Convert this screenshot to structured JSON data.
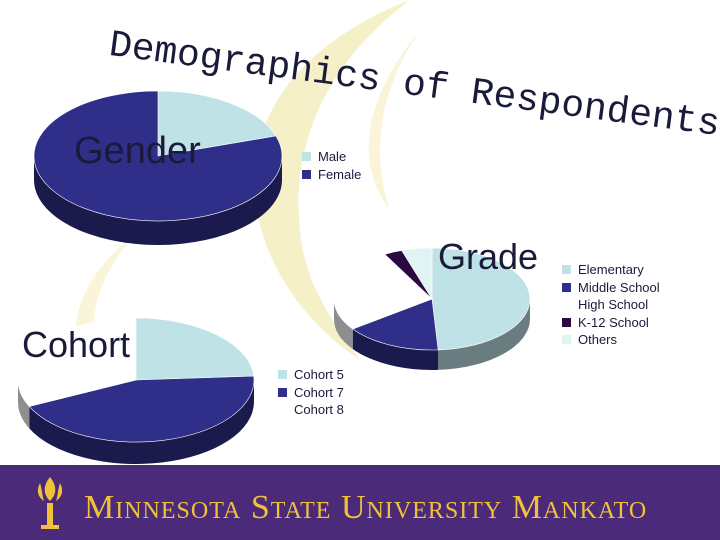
{
  "slide": {
    "title": "Demographics of Respondents",
    "footer": {
      "institution": "Minnesota State University Mankato",
      "words": [
        "Minnesota",
        "State",
        "University",
        "Mankato"
      ]
    }
  },
  "colors": {
    "light_blue": "#bfe2e6",
    "navy": "#2f2f8a",
    "white": "#ffffff",
    "dark_purple": "#2a0a40",
    "pale_cyan": "#e0f4f4",
    "footer_bg": "#4b2a7a",
    "footer_text": "#f0c23a",
    "watermark": "#f6f0c8"
  },
  "chart_data": [
    {
      "type": "pie",
      "title": "Gender",
      "categories": [
        "Male",
        "Female"
      ],
      "values": [
        20,
        80
      ],
      "colors": [
        "#bfe2e6",
        "#2f2f8a"
      ],
      "legend": "right",
      "style": "3d"
    },
    {
      "type": "pie",
      "title": "Grade",
      "categories": [
        "Elementary",
        "Middle School",
        "High School",
        "K-12 School",
        "Others"
      ],
      "values": [
        49,
        16,
        27,
        3,
        5
      ],
      "colors": [
        "#bfe2e6",
        "#2f2f8a",
        "#ffffff",
        "#2a0a40",
        "#e0f4f4"
      ],
      "legend": "right",
      "style": "3d"
    },
    {
      "type": "pie",
      "title": "Cohort",
      "categories": [
        "Cohort 5",
        "Cohort 7",
        "Cohort 8"
      ],
      "values": [
        24,
        44,
        32
      ],
      "colors": [
        "#bfe2e6",
        "#2f2f8a",
        "#ffffff"
      ],
      "legend": "right",
      "style": "3d"
    }
  ]
}
